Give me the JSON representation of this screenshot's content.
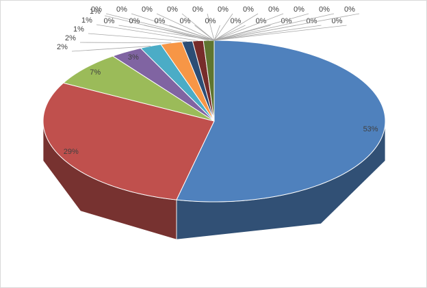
{
  "chart_data": {
    "type": "pie3d",
    "values": [
      53,
      29,
      7,
      3,
      2,
      2,
      1,
      1,
      1,
      0,
      0,
      0,
      0,
      0,
      0,
      0,
      0,
      0,
      0,
      0,
      0,
      0,
      0,
      0,
      0,
      0,
      0,
      0,
      0,
      0
    ],
    "value_labels": [
      "53%",
      "29%",
      "7%",
      "3%",
      "2%",
      "2%",
      "1%",
      "1%",
      "1%",
      "0%",
      "0%",
      "0%",
      "0%",
      "0%",
      "0%",
      "0%",
      "0%",
      "0%",
      "0%",
      "0%",
      "0%",
      "0%",
      "0%",
      "0%",
      "0%",
      "0%",
      "0%",
      "0%",
      "0%",
      "0%"
    ],
    "colors": [
      "#4f81bd",
      "#c0504d",
      "#9bbb59",
      "#8064a2",
      "#4bacc6",
      "#f79646",
      "#2c4d75",
      "#772c2a",
      "#5f7530",
      "#4d3b62",
      "#276a7c",
      "#b65708",
      "#729aca",
      "#cd7371",
      "#afc97a",
      "#9983b5",
      "#6fbdd1",
      "#f9ab6b",
      "#3a679c",
      "#9f3b38",
      "#7f9c40",
      "#664f83",
      "#358ea6",
      "#e07610",
      "#95b3d7",
      "#d99694",
      "#c3d69b",
      "#b3a2c7",
      "#93cddd",
      "#fac090"
    ]
  }
}
